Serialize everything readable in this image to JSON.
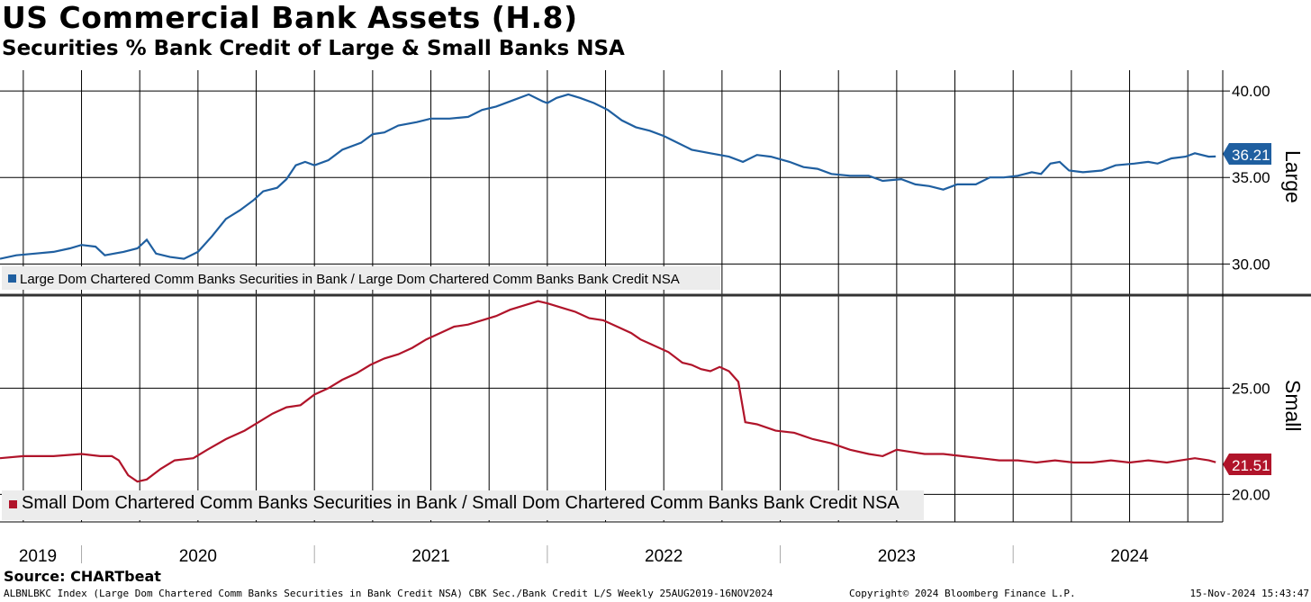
{
  "title": "US Commercial Bank Assets (H.8)",
  "subtitle": "Securities % Bank Credit of Large & Small Banks NSA",
  "source": "Source: CHARTbeat",
  "footer": {
    "left": "ALBNLBKC Index (Large Dom Chartered Comm Banks Securities in Bank Credit NSA) CBK Sec./Bank Credit L/S  Weekly 25AUG2019-16NOV2024",
    "middle": "Copyright© 2024 Bloomberg Finance L.P.",
    "right": "15-Nov-2024 15:43:47"
  },
  "colors": {
    "large": "#1f5fa0",
    "small": "#b0142a",
    "grid": "#000000"
  },
  "chart_data": [
    {
      "type": "line",
      "panel": "top",
      "side_label": "Large",
      "legend": "Large Dom Chartered Comm Banks Securities in Bank / Large Dom Chartered Comm Banks Bank Credit NSA",
      "ylim": [
        28.3,
        41.2
      ],
      "yticks": [
        30,
        35,
        40
      ],
      "ytick_labels": [
        "30.00",
        "35.00",
        "40.00"
      ],
      "last_value_label": "36.21",
      "x_start": 2019.65,
      "x_end": 2024.87,
      "points": [
        [
          2019.65,
          30.3
        ],
        [
          2019.72,
          30.5
        ],
        [
          2019.8,
          30.6
        ],
        [
          2019.88,
          30.7
        ],
        [
          2019.95,
          30.9
        ],
        [
          2020.0,
          31.1
        ],
        [
          2020.06,
          31.0
        ],
        [
          2020.1,
          30.5
        ],
        [
          2020.14,
          30.6
        ],
        [
          2020.18,
          30.7
        ],
        [
          2020.24,
          30.9
        ],
        [
          2020.28,
          31.4
        ],
        [
          2020.32,
          30.6
        ],
        [
          2020.38,
          30.4
        ],
        [
          2020.44,
          30.3
        ],
        [
          2020.5,
          30.7
        ],
        [
          2020.56,
          31.6
        ],
        [
          2020.62,
          32.6
        ],
        [
          2020.68,
          33.1
        ],
        [
          2020.74,
          33.7
        ],
        [
          2020.78,
          34.2
        ],
        [
          2020.84,
          34.4
        ],
        [
          2020.88,
          34.9
        ],
        [
          2020.92,
          35.7
        ],
        [
          2020.96,
          35.9
        ],
        [
          2021.0,
          35.7
        ],
        [
          2021.06,
          36.0
        ],
        [
          2021.12,
          36.6
        ],
        [
          2021.2,
          37.0
        ],
        [
          2021.25,
          37.5
        ],
        [
          2021.3,
          37.6
        ],
        [
          2021.36,
          38.0
        ],
        [
          2021.44,
          38.2
        ],
        [
          2021.5,
          38.4
        ],
        [
          2021.58,
          38.4
        ],
        [
          2021.66,
          38.5
        ],
        [
          2021.72,
          38.9
        ],
        [
          2021.78,
          39.1
        ],
        [
          2021.86,
          39.5
        ],
        [
          2021.92,
          39.8
        ],
        [
          2021.98,
          39.4
        ],
        [
          2022.0,
          39.3
        ],
        [
          2022.04,
          39.6
        ],
        [
          2022.09,
          39.8
        ],
        [
          2022.14,
          39.6
        ],
        [
          2022.2,
          39.3
        ],
        [
          2022.26,
          38.9
        ],
        [
          2022.32,
          38.3
        ],
        [
          2022.38,
          37.9
        ],
        [
          2022.44,
          37.7
        ],
        [
          2022.5,
          37.4
        ],
        [
          2022.56,
          37.0
        ],
        [
          2022.62,
          36.6
        ],
        [
          2022.7,
          36.4
        ],
        [
          2022.78,
          36.2
        ],
        [
          2022.84,
          35.9
        ],
        [
          2022.9,
          36.3
        ],
        [
          2022.96,
          36.2
        ],
        [
          2023.04,
          35.9
        ],
        [
          2023.1,
          35.6
        ],
        [
          2023.16,
          35.5
        ],
        [
          2023.22,
          35.2
        ],
        [
          2023.3,
          35.1
        ],
        [
          2023.38,
          35.1
        ],
        [
          2023.44,
          34.8
        ],
        [
          2023.52,
          34.9
        ],
        [
          2023.58,
          34.6
        ],
        [
          2023.64,
          34.5
        ],
        [
          2023.7,
          34.3
        ],
        [
          2023.76,
          34.6
        ],
        [
          2023.84,
          34.6
        ],
        [
          2023.9,
          35.0
        ],
        [
          2023.96,
          35.0
        ],
        [
          2024.02,
          35.1
        ],
        [
          2024.08,
          35.3
        ],
        [
          2024.12,
          35.2
        ],
        [
          2024.16,
          35.8
        ],
        [
          2024.2,
          35.9
        ],
        [
          2024.24,
          35.4
        ],
        [
          2024.3,
          35.3
        ],
        [
          2024.38,
          35.4
        ],
        [
          2024.44,
          35.7
        ],
        [
          2024.52,
          35.8
        ],
        [
          2024.58,
          35.9
        ],
        [
          2024.62,
          35.8
        ],
        [
          2024.68,
          36.1
        ],
        [
          2024.74,
          36.2
        ],
        [
          2024.78,
          36.4
        ],
        [
          2024.84,
          36.2
        ],
        [
          2024.87,
          36.21
        ]
      ]
    },
    {
      "type": "line",
      "panel": "bottom",
      "side_label": "Small",
      "legend": "Small Dom Chartered Comm Banks Securities in Bank / Small Dom Chartered Comm Banks Bank Credit NSA",
      "ylim": [
        18.7,
        29.3
      ],
      "yticks": [
        20,
        25
      ],
      "ytick_labels": [
        "20.00",
        "25.00"
      ],
      "last_value_label": "21.51",
      "x_start": 2019.65,
      "x_end": 2024.87,
      "points": [
        [
          2019.65,
          21.7
        ],
        [
          2019.75,
          21.8
        ],
        [
          2019.88,
          21.8
        ],
        [
          2020.0,
          21.9
        ],
        [
          2020.08,
          21.8
        ],
        [
          2020.13,
          21.8
        ],
        [
          2020.16,
          21.6
        ],
        [
          2020.2,
          20.9
        ],
        [
          2020.24,
          20.6
        ],
        [
          2020.28,
          20.7
        ],
        [
          2020.34,
          21.2
        ],
        [
          2020.4,
          21.6
        ],
        [
          2020.48,
          21.7
        ],
        [
          2020.54,
          22.1
        ],
        [
          2020.62,
          22.6
        ],
        [
          2020.7,
          23.0
        ],
        [
          2020.76,
          23.4
        ],
        [
          2020.82,
          23.8
        ],
        [
          2020.88,
          24.1
        ],
        [
          2020.94,
          24.2
        ],
        [
          2021.0,
          24.7
        ],
        [
          2021.06,
          25.0
        ],
        [
          2021.12,
          25.4
        ],
        [
          2021.18,
          25.7
        ],
        [
          2021.24,
          26.1
        ],
        [
          2021.3,
          26.4
        ],
        [
          2021.36,
          26.6
        ],
        [
          2021.42,
          26.9
        ],
        [
          2021.48,
          27.3
        ],
        [
          2021.54,
          27.6
        ],
        [
          2021.6,
          27.9
        ],
        [
          2021.66,
          28.0
        ],
        [
          2021.72,
          28.2
        ],
        [
          2021.78,
          28.4
        ],
        [
          2021.84,
          28.7
        ],
        [
          2021.9,
          28.9
        ],
        [
          2021.96,
          29.1
        ],
        [
          2022.0,
          29.0
        ],
        [
          2022.06,
          28.8
        ],
        [
          2022.12,
          28.6
        ],
        [
          2022.18,
          28.3
        ],
        [
          2022.24,
          28.2
        ],
        [
          2022.3,
          27.9
        ],
        [
          2022.36,
          27.6
        ],
        [
          2022.4,
          27.3
        ],
        [
          2022.46,
          27.0
        ],
        [
          2022.52,
          26.7
        ],
        [
          2022.58,
          26.2
        ],
        [
          2022.62,
          26.1
        ],
        [
          2022.66,
          25.9
        ],
        [
          2022.7,
          25.8
        ],
        [
          2022.74,
          26.0
        ],
        [
          2022.78,
          25.8
        ],
        [
          2022.82,
          25.3
        ],
        [
          2022.85,
          23.4
        ],
        [
          2022.9,
          23.3
        ],
        [
          2022.98,
          23.0
        ],
        [
          2023.06,
          22.9
        ],
        [
          2023.14,
          22.6
        ],
        [
          2023.22,
          22.4
        ],
        [
          2023.3,
          22.1
        ],
        [
          2023.38,
          21.9
        ],
        [
          2023.44,
          21.8
        ],
        [
          2023.5,
          22.1
        ],
        [
          2023.56,
          22.0
        ],
        [
          2023.62,
          21.9
        ],
        [
          2023.7,
          21.9
        ],
        [
          2023.78,
          21.8
        ],
        [
          2023.86,
          21.7
        ],
        [
          2023.94,
          21.6
        ],
        [
          2024.02,
          21.6
        ],
        [
          2024.1,
          21.5
        ],
        [
          2024.18,
          21.6
        ],
        [
          2024.26,
          21.5
        ],
        [
          2024.34,
          21.5
        ],
        [
          2024.42,
          21.6
        ],
        [
          2024.5,
          21.5
        ],
        [
          2024.58,
          21.6
        ],
        [
          2024.66,
          21.5
        ],
        [
          2024.72,
          21.6
        ],
        [
          2024.78,
          21.7
        ],
        [
          2024.84,
          21.6
        ],
        [
          2024.87,
          21.51
        ]
      ]
    }
  ],
  "x_axis": {
    "year_labels": [
      "2019",
      "2020",
      "2021",
      "2022",
      "2023",
      "2024"
    ],
    "year_positions": [
      2019.85,
      2020.5,
      2021.5,
      2022.5,
      2023.5,
      2024.5
    ],
    "year_boundaries": [
      2020.0,
      2021.0,
      2022.0,
      2023.0,
      2024.0
    ],
    "gridline_dates": [
      2019.75,
      2020.0,
      2020.25,
      2020.5,
      2020.75,
      2021.0,
      2021.25,
      2021.5,
      2021.75,
      2022.0,
      2022.25,
      2022.5,
      2022.75,
      2023.0,
      2023.25,
      2023.5,
      2023.75,
      2024.0,
      2024.25,
      2024.5,
      2024.75
    ]
  }
}
